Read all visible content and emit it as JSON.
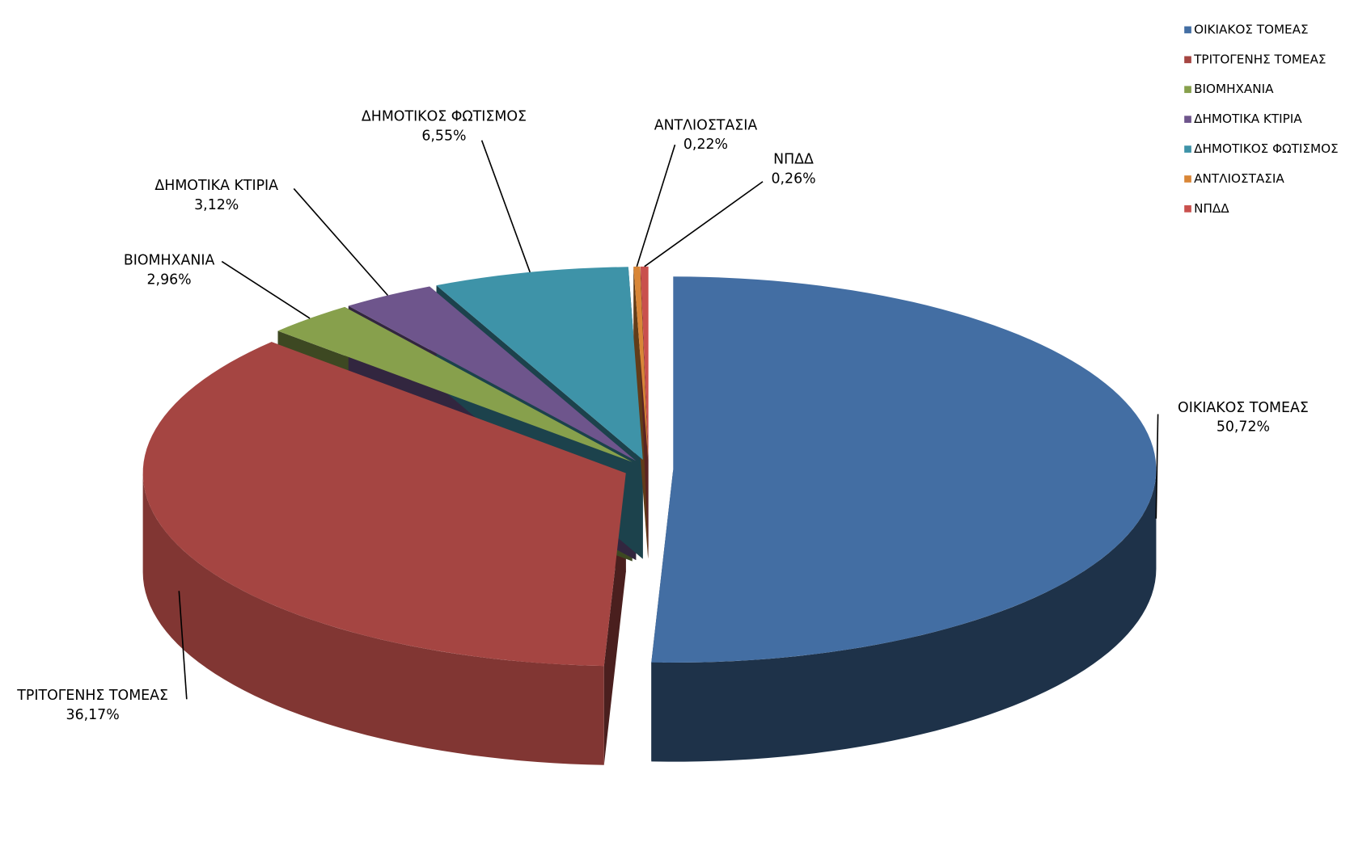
{
  "chart_data": {
    "type": "pie3d",
    "categories": [
      "ΟΙΚΙΑΚΟΣ ΤΟΜΕΑΣ",
      "ΤΡΙΤΟΓΕΝΗΣ ΤΟΜΕΑΣ",
      "ΒΙΟΜΗΧΑΝΙΑ",
      "ΔΗΜΟΤΙΚΑ ΚΤΙΡΙΑ",
      "ΔΗΜΟΤΙΚΟΣ ΦΩΤΙΣΜΟΣ",
      "ΑΝΤΛΙΟΣΤΑΣΙΑ",
      "ΝΠΔΔ"
    ],
    "values": [
      50.72,
      36.17,
      2.96,
      3.12,
      6.55,
      0.22,
      0.26
    ],
    "value_labels": [
      "50,72%",
      "36,17%",
      "2,96%",
      "3,12%",
      "6,55%",
      "0,22%",
      "0,26%"
    ],
    "colors": [
      "#436ea3",
      "#a54542",
      "#87a04c",
      "#6e558c",
      "#3e93a8",
      "#d98637",
      "#c9504d"
    ],
    "legend": "top-right"
  }
}
